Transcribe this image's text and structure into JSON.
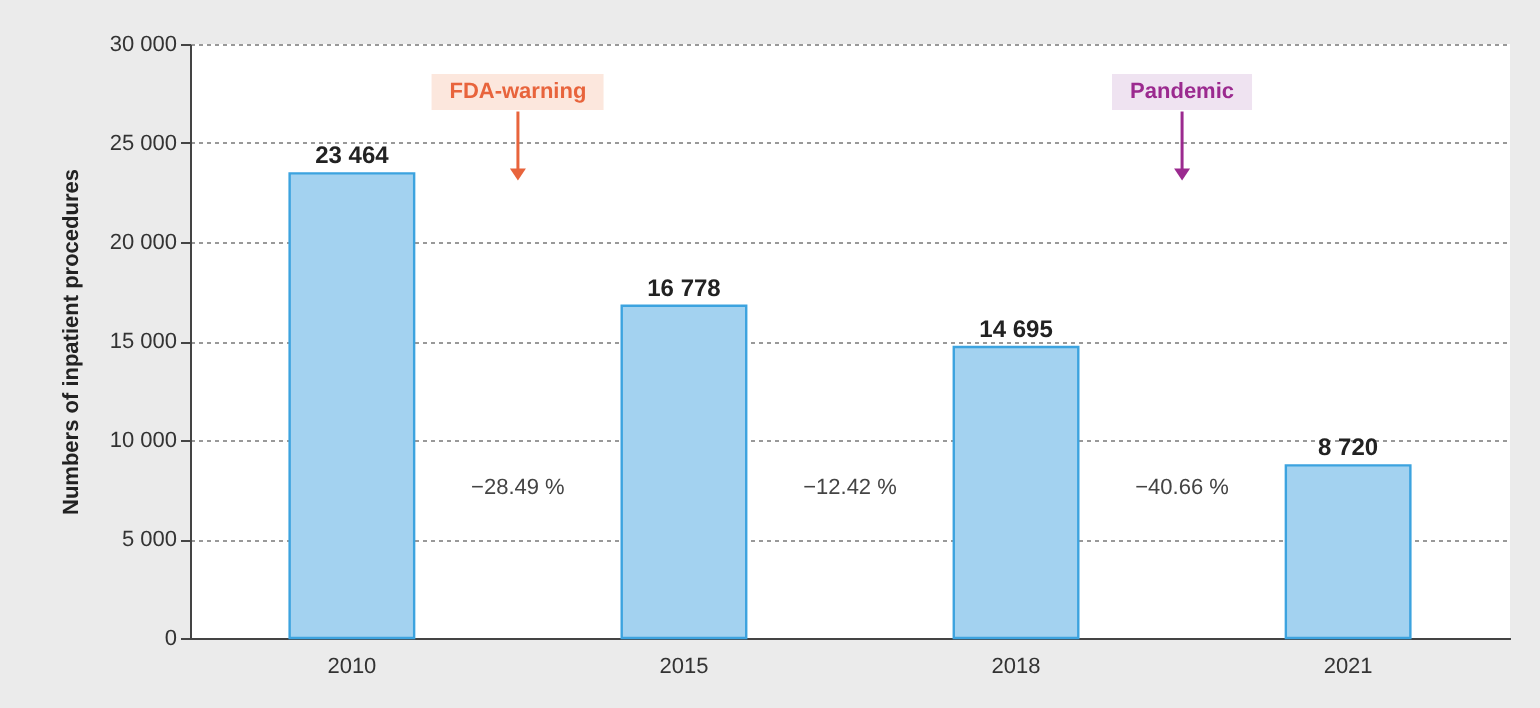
{
  "chart_data": {
    "type": "bar",
    "ylabel": "Numbers of inpatient procedures",
    "categories": [
      "2010",
      "2015",
      "2018",
      "2021"
    ],
    "series": [
      {
        "color": "#a3d2f0",
        "values": [
          23464,
          16778,
          14695,
          8720
        ]
      }
    ],
    "value_labels": [
      "23 464",
      "16 778",
      "14 695",
      "8 720"
    ],
    "ylim": [
      0,
      30000
    ],
    "yticks": [
      0,
      {
        "value": 5000,
        "label": "5 000"
      },
      {
        "value": 10000,
        "label": "10 000"
      },
      {
        "value": 15000,
        "label": "15 000"
      },
      {
        "value": 20000,
        "label": "20 000"
      },
      {
        "value": 25000,
        "label": "25 000"
      },
      {
        "value": 30000,
        "label": "30 000"
      }
    ],
    "grid": "y",
    "legend": false,
    "annotations": [
      "FDA-warning",
      "Pandemic",
      "−28.49 %",
      "−12.42 %",
      "−40.66 %"
    ]
  }
}
